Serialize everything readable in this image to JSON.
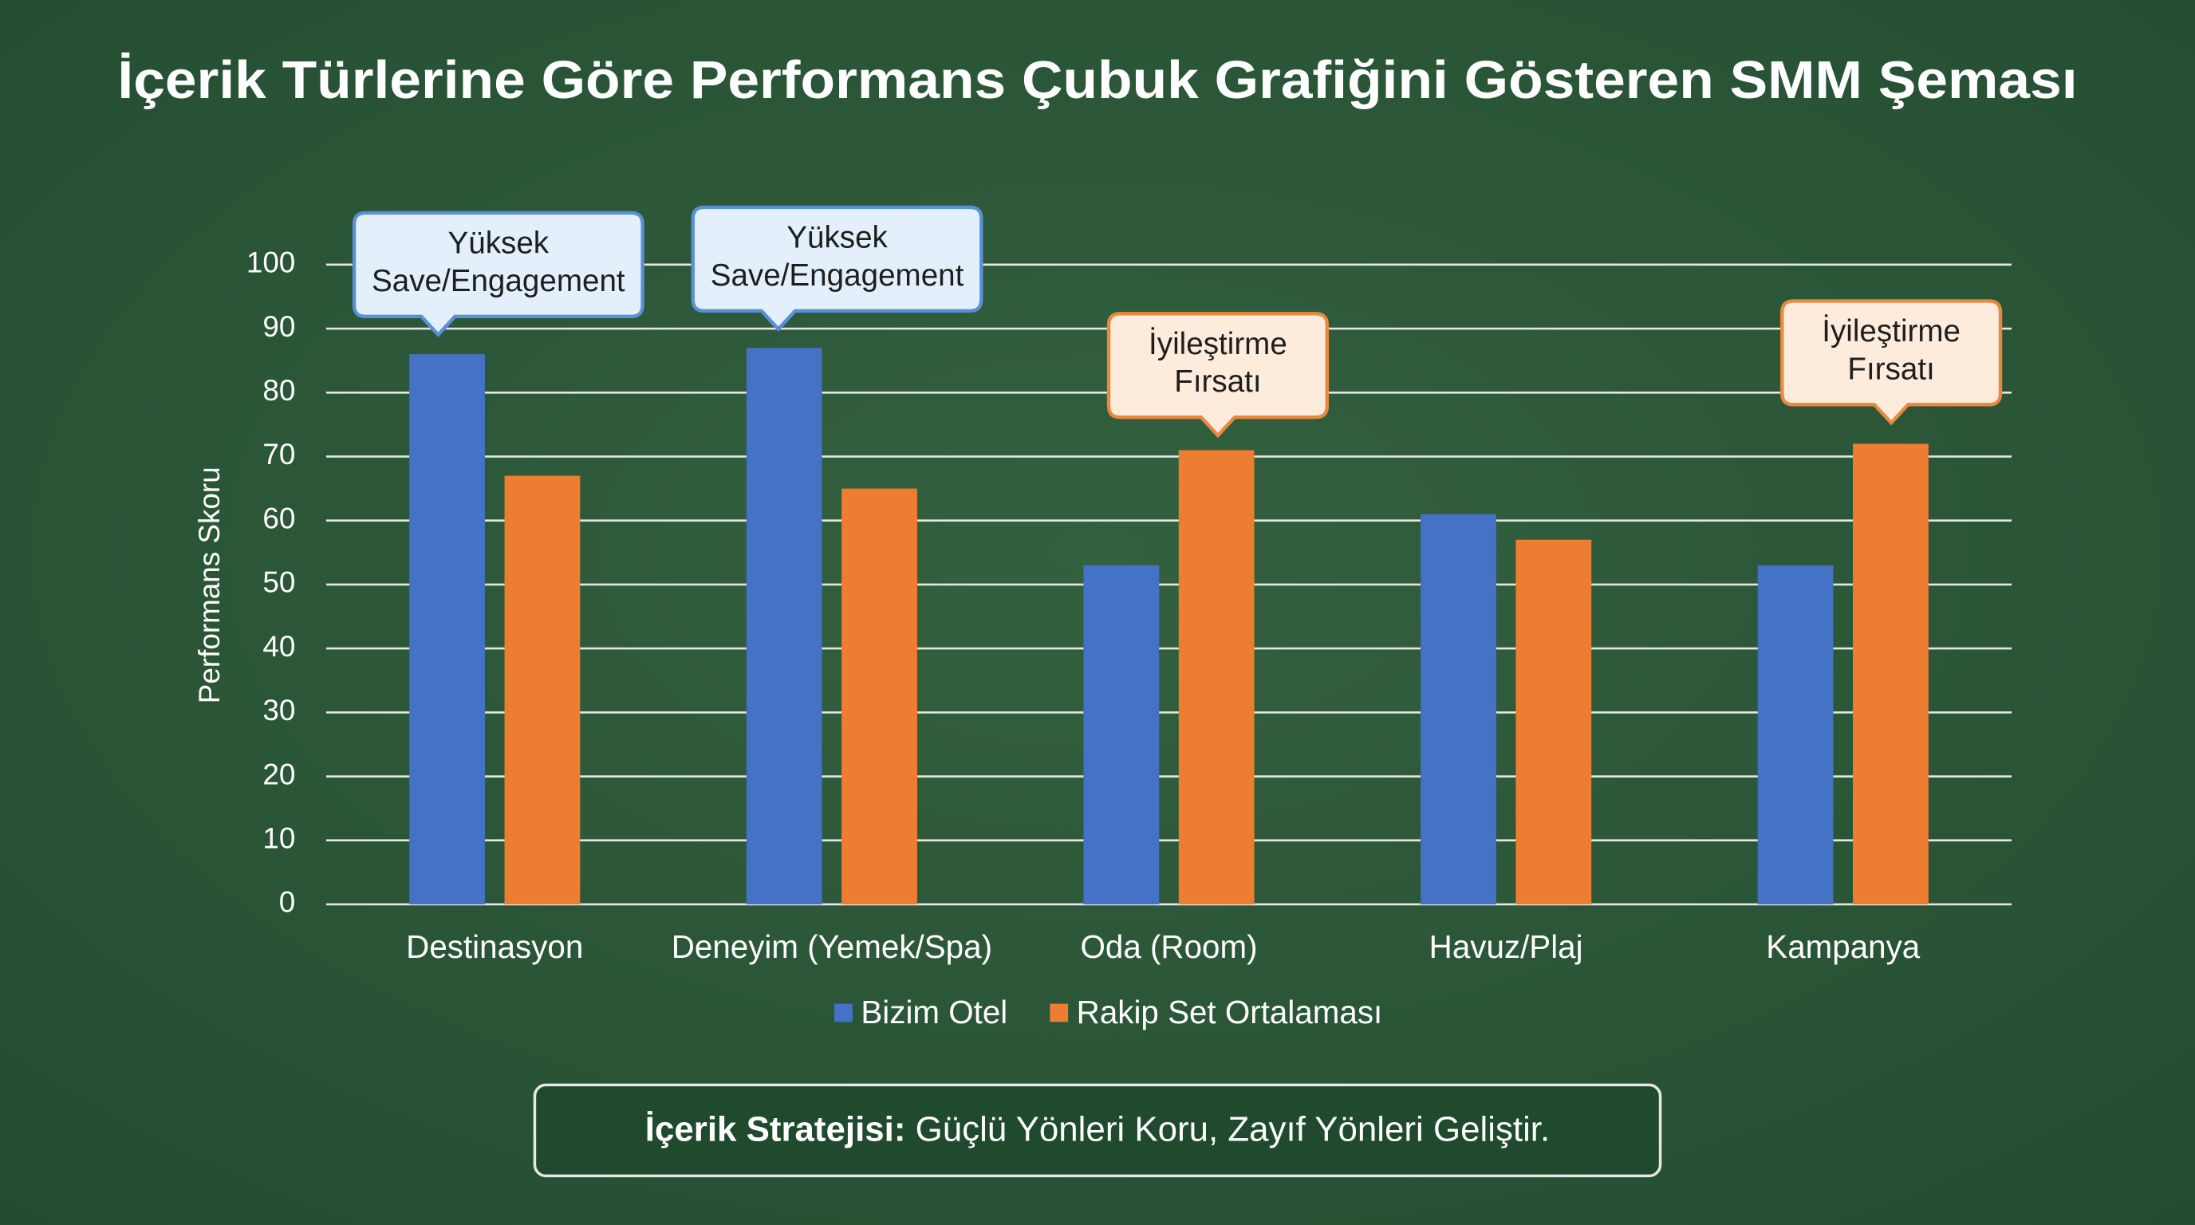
{
  "chart_data": {
    "type": "bar",
    "title": "İçerik Türlerine Göre Performans Çubuk Grafiğini Gösteren SMM Şeması",
    "y_label": "Performans Skoru",
    "categories": [
      "Destinasyon",
      "Deneyim (Yemek/Spa)",
      "Oda (Room)",
      "Havuz/Plaj",
      "Kampanya"
    ],
    "series": [
      {
        "name": "Bizim Otel",
        "color": "#4472c4",
        "values": [
          86,
          87,
          53,
          61,
          53
        ]
      },
      {
        "name": "Rakip Set Ortalaması",
        "color": "#ed7d31",
        "values": [
          67,
          65,
          71,
          57,
          72
        ]
      }
    ],
    "ylim": [
      0,
      100
    ],
    "yticks": [
      0,
      10,
      20,
      30,
      40,
      50,
      60,
      70,
      80,
      90,
      100
    ],
    "grid": true,
    "legend": "bottom",
    "annotations": [
      [
        "Yüksek",
        "Save/Engagement"
      ],
      [
        "Yüksek",
        "Save/Engagement"
      ],
      [
        "İyileştirme",
        "Fırsatı"
      ],
      [
        "İyileştirme",
        "Fırsatı"
      ]
    ]
  },
  "footer": {
    "label": "İçerik Stratejisi:",
    "text": "Güçlü Yönleri Koru, Zayıf Yönleri Geliştir."
  }
}
